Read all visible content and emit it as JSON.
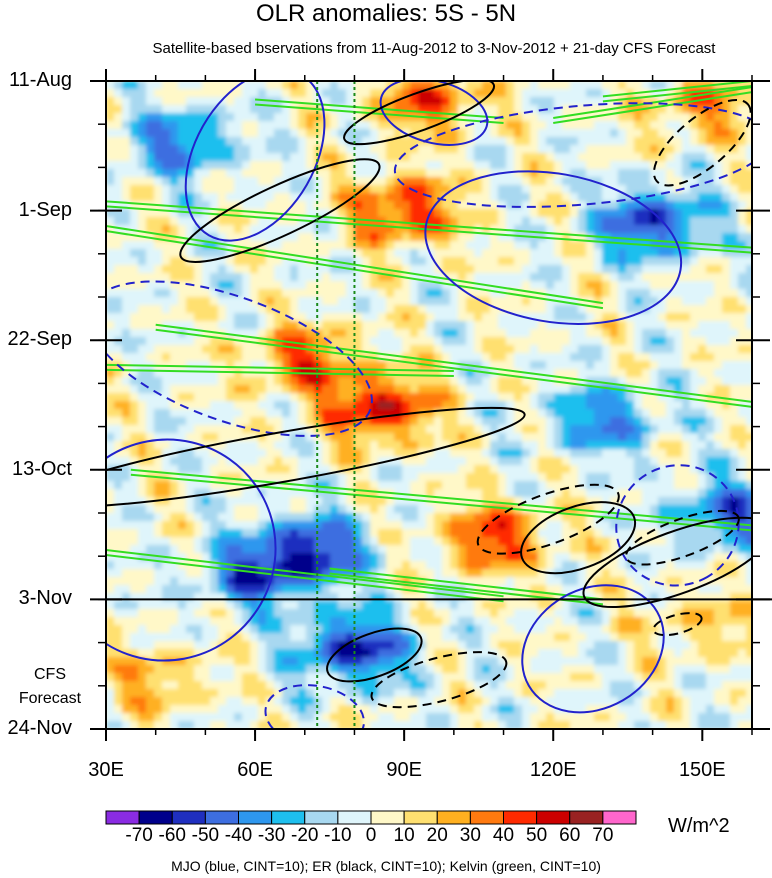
{
  "chart_data": {
    "type": "heatmap",
    "title": "OLR anomalies: 5S - 5N",
    "subtitle": "Satellite-based bservations from 11-Aug-2012 to 3-Nov-2012 + 21-day CFS Forecast",
    "x_axis": {
      "range": [
        30,
        160
      ],
      "ticks": [
        {
          "value": 30,
          "label": "30E"
        },
        {
          "value": 60,
          "label": "60E"
        },
        {
          "value": 90,
          "label": "90E"
        },
        {
          "value": 120,
          "label": "120E"
        },
        {
          "value": 150,
          "label": "150E"
        }
      ],
      "minor_step": 10
    },
    "y_axis": {
      "range_days": [
        0,
        105
      ],
      "start_date": "11-Aug-2012",
      "ticks": [
        {
          "day": 0,
          "label": "11-Aug"
        },
        {
          "day": 21,
          "label": "1-Sep"
        },
        {
          "day": 42,
          "label": "22-Sep"
        },
        {
          "day": 63,
          "label": "13-Oct"
        },
        {
          "day": 84,
          "label": "3-Nov"
        },
        {
          "day": 105,
          "label": "24-Nov"
        }
      ],
      "minor_step_days": 7,
      "observation_end_day": 84
    },
    "forecast_label_line1": "CFS",
    "forecast_label_line2": "Forecast",
    "reference_lines_lon": [
      72.5,
      80
    ],
    "colorbar": {
      "unit_label": "W/m^2",
      "levels": [
        -70,
        -60,
        -50,
        -40,
        -30,
        -20,
        -10,
        0,
        10,
        20,
        30,
        40,
        50,
        60,
        70
      ],
      "tick_labels": [
        "-70",
        "-60",
        "-50",
        "-40",
        "-30",
        "-20",
        "-10",
        "0",
        "10",
        "20",
        "30",
        "40",
        "50",
        "60",
        "70"
      ],
      "colors": [
        "#8a2be2",
        "#00008b",
        "#1f2fbf",
        "#3d6ee0",
        "#2e97ee",
        "#1ebfee",
        "#a8d8f0",
        "#dff5fb",
        "#fff8c8",
        "#ffe070",
        "#ffb020",
        "#ff7a10",
        "#ff2a00",
        "#cc0000",
        "#992222",
        "#ff66cc"
      ]
    },
    "anomaly_features": [
      {
        "sign": "negative",
        "lon": 80,
        "day": 92,
        "amplitude": -60
      },
      {
        "sign": "negative",
        "lon": 72,
        "day": 76,
        "amplitude": -55
      },
      {
        "sign": "negative",
        "lon": 60,
        "day": 80,
        "amplitude": -45
      },
      {
        "sign": "negative",
        "lon": 155,
        "day": 70,
        "amplitude": -45
      },
      {
        "sign": "negative",
        "lon": 140,
        "day": 23,
        "amplitude": -55
      },
      {
        "sign": "negative",
        "lon": 45,
        "day": 10,
        "amplitude": -40
      },
      {
        "sign": "negative",
        "lon": 130,
        "day": 55,
        "amplitude": -40
      },
      {
        "sign": "positive",
        "lon": 85,
        "day": 53,
        "amplitude": 55
      },
      {
        "sign": "positive",
        "lon": 90,
        "day": 21,
        "amplitude": 50
      },
      {
        "sign": "positive",
        "lon": 95,
        "day": 3,
        "amplitude": 40
      },
      {
        "sign": "positive",
        "lon": 70,
        "day": 45,
        "amplitude": 40
      },
      {
        "sign": "positive",
        "lon": 108,
        "day": 74,
        "amplitude": 45
      },
      {
        "sign": "positive",
        "lon": 40,
        "day": 97,
        "amplitude": 25
      },
      {
        "sign": "positive",
        "lon": 150,
        "day": 88,
        "amplitude": 20
      },
      {
        "sign": "positive",
        "lon": 150,
        "day": 4,
        "amplitude": 30
      }
    ],
    "contour_legend": "MJO (blue, CINT=10); ER (black, CINT=10); Kelvin (green, CINT=10)",
    "contours": {
      "mjo_blue": [
        {
          "clon": 42,
          "cday": 76,
          "rlon": 22,
          "rday": 18,
          "tilt": 35,
          "style": "solid"
        },
        {
          "clon": 60,
          "cday": 12,
          "rlon": 12,
          "rday": 15,
          "tilt": 30,
          "style": "solid"
        },
        {
          "clon": 96,
          "cday": 5,
          "rlon": 11,
          "rday": 5,
          "tilt": 15,
          "style": "solid"
        },
        {
          "clon": 120,
          "cday": 27,
          "rlon": 26,
          "rday": 12,
          "tilt": 10,
          "style": "solid"
        },
        {
          "clon": 128,
          "cday": 92,
          "rlon": 12,
          "rday": 12,
          "tilt": 60,
          "style": "solid"
        },
        {
          "clon": 55,
          "cday": 45,
          "rlon": 30,
          "rday": 10,
          "tilt": 20,
          "style": "dashed"
        },
        {
          "clon": 126,
          "cday": 12,
          "rlon": 38,
          "rday": 8,
          "tilt": -5,
          "style": "dashed"
        },
        {
          "clon": 145,
          "cday": 72,
          "rlon": 12,
          "rday": 10,
          "tilt": 60,
          "style": "dashed"
        },
        {
          "clon": 72,
          "cday": 103,
          "rlon": 10,
          "rday": 5,
          "tilt": 10,
          "style": "dashed"
        }
      ],
      "er_black": [
        {
          "clon": 65,
          "cday": 61,
          "rlon": 50,
          "rday": 4,
          "tilt": -10,
          "style": "solid"
        },
        {
          "clon": 65,
          "cday": 21,
          "rlon": 22,
          "rday": 4,
          "tilt": -25,
          "style": "solid"
        },
        {
          "clon": 93,
          "cday": 5,
          "rlon": 16,
          "rday": 3,
          "tilt": -20,
          "style": "solid"
        },
        {
          "clon": 125,
          "cday": 74,
          "rlon": 12,
          "rday": 5,
          "tilt": -20,
          "style": "solid"
        },
        {
          "clon": 145,
          "cday": 78,
          "rlon": 20,
          "rday": 5,
          "tilt": -20,
          "style": "solid"
        },
        {
          "clon": 84,
          "cday": 93,
          "rlon": 10,
          "rday": 3.5,
          "tilt": -20,
          "style": "solid"
        },
        {
          "clon": 97,
          "cday": 97,
          "rlon": 14,
          "rday": 3.5,
          "tilt": -15,
          "style": "dashed"
        },
        {
          "clon": 119,
          "cday": 71,
          "rlon": 15,
          "rday": 4,
          "tilt": -20,
          "style": "dashed"
        },
        {
          "clon": 150,
          "cday": 10,
          "rlon": 12,
          "rday": 4,
          "tilt": -40,
          "style": "dashed"
        },
        {
          "clon": 145,
          "cday": 88,
          "rlon": 5,
          "rday": 1.5,
          "tilt": -15,
          "style": "dashed"
        },
        {
          "clon": 146,
          "cday": 74,
          "rlon": 12,
          "rday": 3,
          "tilt": -20,
          "style": "dashed"
        }
      ],
      "kelvin_green": [
        {
          "x1": 30,
          "d1": 19.5,
          "x2": 160,
          "d2": 27
        },
        {
          "x1": 30,
          "d1": 23.5,
          "x2": 130,
          "d2": 36
        },
        {
          "x1": 40,
          "d1": 39.5,
          "x2": 160,
          "d2": 52
        },
        {
          "x1": 30,
          "d1": 46,
          "x2": 100,
          "d2": 47
        },
        {
          "x1": 35,
          "d1": 63,
          "x2": 160,
          "d2": 72
        },
        {
          "x1": 30,
          "d1": 76,
          "x2": 110,
          "d2": 83.5
        },
        {
          "x1": 75,
          "d1": 79,
          "x2": 130,
          "d2": 84
        },
        {
          "x1": 60,
          "d1": 3,
          "x2": 110,
          "d2": 6
        },
        {
          "x1": 120,
          "d1": 6,
          "x2": 160,
          "d2": 1
        },
        {
          "x1": 130,
          "d1": 2.5,
          "x2": 160,
          "d2": 0
        }
      ]
    }
  }
}
